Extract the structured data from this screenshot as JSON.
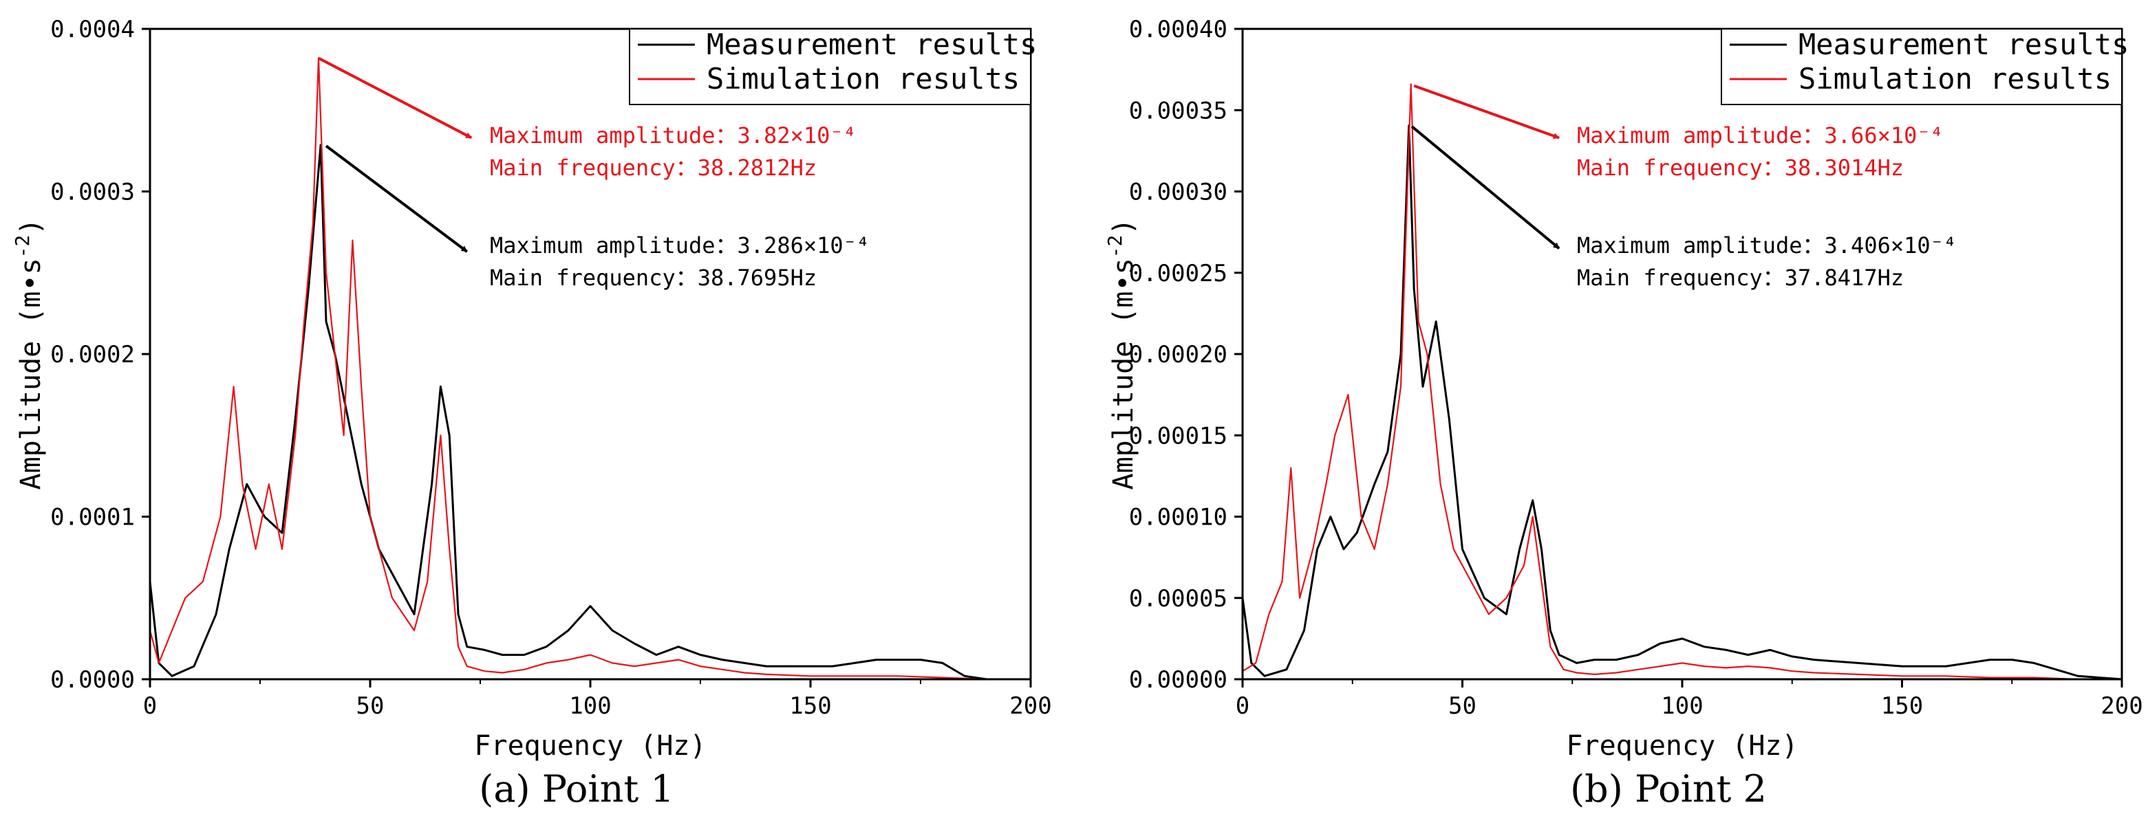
{
  "chart_data": [
    {
      "type": "line",
      "panel_caption": "(a) Point 1",
      "xlabel": "Frequency (Hz)",
      "ylabel": "Amplitude (m•s",
      "ylabel_superscript": "-2",
      "ylabel_close": ")",
      "xlim": [
        0,
        200
      ],
      "ylim": [
        0,
        0.0004
      ],
      "x_ticks": [
        "0",
        "50",
        "100",
        "150",
        "200"
      ],
      "y_ticks": [
        "0.0000",
        "0.0001",
        "0.0002",
        "0.0003",
        "0.0004"
      ],
      "legend": {
        "position": "top-right",
        "items": [
          "Measurement results",
          "Simulation results"
        ]
      },
      "grid": false,
      "series": [
        {
          "name": "Measurement results",
          "color": "#000000",
          "x": [
            0,
            2,
            5,
            10,
            15,
            18,
            22,
            26,
            30,
            33,
            36,
            38.77,
            40,
            42,
            45,
            48,
            52,
            56,
            60,
            64,
            66,
            68,
            70,
            72,
            76,
            80,
            85,
            90,
            95,
            100,
            105,
            110,
            115,
            120,
            125,
            130,
            135,
            140,
            145,
            150,
            155,
            160,
            165,
            170,
            175,
            180,
            185,
            190,
            200
          ],
          "y": [
            6e-05,
            1e-05,
            2e-06,
            8e-06,
            4e-05,
            8e-05,
            0.00012,
            0.0001,
            9e-05,
            0.00016,
            0.00024,
            0.0003286,
            0.00022,
            0.0002,
            0.00016,
            0.00012,
            8e-05,
            6e-05,
            4e-05,
            0.00012,
            0.00018,
            0.00015,
            4e-05,
            2e-05,
            1.8e-05,
            1.5e-05,
            1.5e-05,
            2e-05,
            3e-05,
            4.5e-05,
            3e-05,
            2.2e-05,
            1.5e-05,
            2e-05,
            1.5e-05,
            1.2e-05,
            1e-05,
            8e-06,
            8e-06,
            8e-06,
            8e-06,
            1e-05,
            1.2e-05,
            1.2e-05,
            1.2e-05,
            1e-05,
            2e-06,
            0,
            0
          ]
        },
        {
          "name": "Simulation results",
          "color": "#e8141b",
          "x": [
            0,
            2,
            5,
            8,
            12,
            16,
            19,
            21,
            24,
            27,
            30,
            33,
            35,
            37,
            38.28,
            40,
            42,
            44,
            46,
            48,
            50,
            55,
            60,
            63,
            66,
            68,
            70,
            72,
            76,
            80,
            85,
            90,
            95,
            100,
            105,
            110,
            115,
            120,
            125,
            130,
            135,
            140,
            150,
            160,
            170,
            180,
            190,
            200
          ],
          "y": [
            3e-05,
            1e-05,
            3e-05,
            5e-05,
            6e-05,
            0.0001,
            0.00018,
            0.00012,
            8e-05,
            0.00012,
            8e-05,
            0.00015,
            0.00022,
            0.00028,
            0.000382,
            0.00025,
            0.0002,
            0.00015,
            0.00027,
            0.00018,
            0.0001,
            5e-05,
            3e-05,
            6e-05,
            0.00015,
            8e-05,
            2e-05,
            8e-06,
            5e-06,
            4e-06,
            6e-06,
            1e-05,
            1.2e-05,
            1.5e-05,
            1e-05,
            8e-06,
            1e-05,
            1.2e-05,
            8e-06,
            6e-06,
            4e-06,
            3e-06,
            2e-06,
            2e-06,
            2e-06,
            1e-06,
            0,
            0
          ]
        }
      ],
      "annotations": [
        {
          "color": "#e8141b",
          "lines": [
            "Maximum amplitude：3.82×10⁻⁴",
            "Main frequency：38.2812Hz"
          ],
          "peak": [
            38.28,
            0.000382
          ],
          "arrow_to": [
            73,
            0.000333
          ]
        },
        {
          "color": "#000000",
          "lines": [
            "Maximum amplitude：3.286×10⁻⁴",
            "Main frequency：38.7695Hz"
          ],
          "peak": [
            40,
            0.000328
          ],
          "arrow_to": [
            72,
            0.000263
          ]
        }
      ]
    },
    {
      "type": "line",
      "panel_caption": "(b) Point 2",
      "xlabel": "Frequency (Hz)",
      "ylabel": "Amplitude (m•s",
      "ylabel_superscript": "-2",
      "ylabel_close": ")",
      "xlim": [
        0,
        200
      ],
      "ylim": [
        0,
        0.0004
      ],
      "x_ticks": [
        "0",
        "50",
        "100",
        "150",
        "200"
      ],
      "y_ticks": [
        "0.00000",
        "0.00005",
        "0.00010",
        "0.00015",
        "0.00020",
        "0.00025",
        "0.00030",
        "0.00035",
        "0.00040"
      ],
      "legend": {
        "position": "top-right",
        "items": [
          "Measurement results",
          "Simulation results"
        ]
      },
      "grid": false,
      "series": [
        {
          "name": "Measurement results",
          "color": "#000000",
          "x": [
            0,
            2,
            5,
            10,
            14,
            17,
            20,
            23,
            26,
            30,
            33,
            36,
            37.84,
            39,
            41,
            44,
            47,
            50,
            55,
            60,
            63,
            66,
            68,
            70,
            72,
            76,
            80,
            85,
            90,
            95,
            100,
            105,
            110,
            115,
            120,
            125,
            130,
            140,
            150,
            160,
            165,
            170,
            175,
            180,
            185,
            190,
            200
          ],
          "y": [
            5e-05,
            1e-05,
            2e-06,
            6e-06,
            3e-05,
            8e-05,
            0.0001,
            8e-05,
            9e-05,
            0.00012,
            0.00014,
            0.0002,
            0.0003406,
            0.00024,
            0.00018,
            0.00022,
            0.00016,
            8e-05,
            5e-05,
            4e-05,
            8e-05,
            0.00011,
            8e-05,
            3e-05,
            1.5e-05,
            1e-05,
            1.2e-05,
            1.2e-05,
            1.5e-05,
            2.2e-05,
            2.5e-05,
            2e-05,
            1.8e-05,
            1.5e-05,
            1.8e-05,
            1.4e-05,
            1.2e-05,
            1e-05,
            8e-06,
            8e-06,
            1e-05,
            1.2e-05,
            1.2e-05,
            1e-05,
            6e-06,
            2e-06,
            0
          ]
        },
        {
          "name": "Simulation results",
          "color": "#e8141b",
          "x": [
            0,
            3,
            6,
            9,
            11,
            13,
            16,
            19,
            21,
            24,
            27,
            30,
            33,
            36,
            38.3,
            40,
            42,
            45,
            48,
            52,
            56,
            60,
            64,
            66,
            68,
            70,
            73,
            76,
            80,
            85,
            90,
            95,
            100,
            105,
            110,
            115,
            120,
            125,
            130,
            140,
            150,
            160,
            170,
            180,
            190,
            200
          ],
          "y": [
            5e-06,
            1e-05,
            4e-05,
            6e-05,
            0.00013,
            5e-05,
            8e-05,
            0.00012,
            0.00015,
            0.000175,
            0.0001,
            8e-05,
            0.00012,
            0.00018,
            0.000366,
            0.00022,
            0.0002,
            0.00012,
            8e-05,
            6e-05,
            4e-05,
            5e-05,
            7e-05,
            0.0001,
            6e-05,
            2e-05,
            6e-06,
            4e-06,
            3e-06,
            4e-06,
            6e-06,
            8e-06,
            1e-05,
            8e-06,
            7e-06,
            8e-06,
            7e-06,
            5e-06,
            4e-06,
            3e-06,
            2e-06,
            2e-06,
            1e-06,
            1e-06,
            0,
            0
          ]
        }
      ],
      "annotations": [
        {
          "color": "#e8141b",
          "lines": [
            "Maximum amplitude：3.66×10⁻⁴",
            "Main frequency：38.3014Hz"
          ],
          "peak": [
            39,
            0.000365
          ],
          "arrow_to": [
            72,
            0.000333
          ]
        },
        {
          "color": "#000000",
          "lines": [
            "Maximum amplitude：3.406×10⁻⁴",
            "Main frequency：37.8417Hz"
          ],
          "peak": [
            38.5,
            0.00034
          ],
          "arrow_to": [
            72,
            0.000265
          ]
        }
      ]
    }
  ]
}
